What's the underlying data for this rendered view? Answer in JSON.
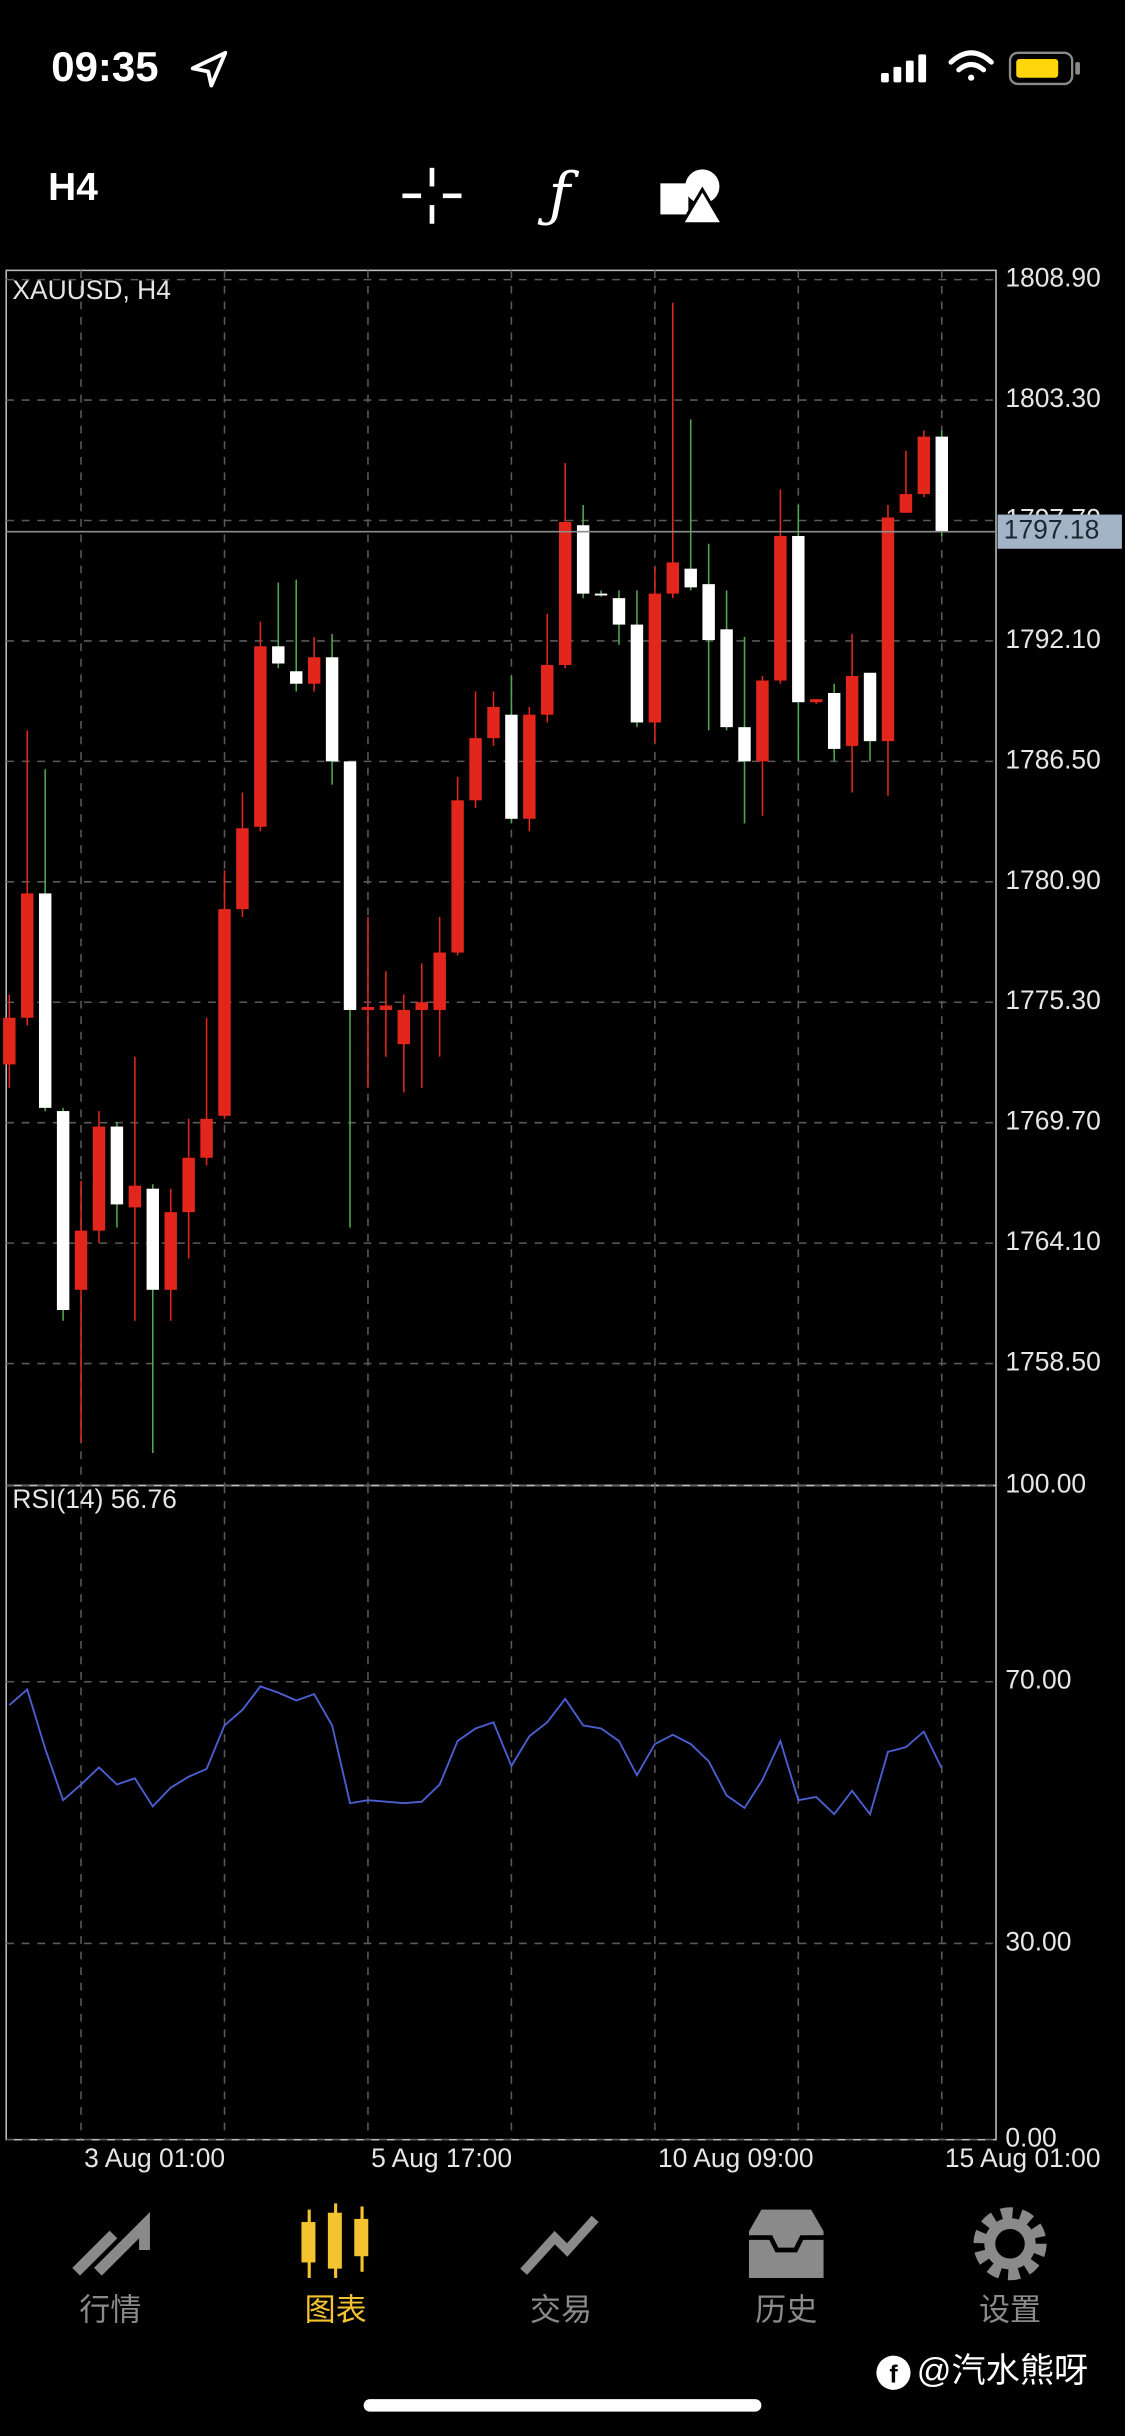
{
  "status_bar": {
    "time": "09:35"
  },
  "toolbar": {
    "timeframe": "H4"
  },
  "chart_data": [
    {
      "type": "candlestick",
      "title": "XAUUSD, H4",
      "categories": [
        null,
        null,
        null,
        null,
        "3 Aug 01:00",
        null,
        null,
        null,
        null,
        null,
        null,
        null,
        null,
        null,
        null,
        null,
        null,
        null,
        null,
        null,
        "5 Aug 17:00",
        null,
        null,
        null,
        null,
        null,
        null,
        null,
        null,
        null,
        null,
        null,
        null,
        null,
        null,
        null,
        "10 Aug 09:00",
        null,
        null,
        null,
        null,
        null,
        null,
        null,
        null,
        null,
        null,
        null,
        null,
        null,
        null,
        null,
        "15 Aug 01:00"
      ],
      "open": [
        1772.41,
        1774.58,
        1780.36,
        1770.24,
        1761.93,
        1764.68,
        1769.52,
        1765.76,
        1766.63,
        1761.93,
        1765.54,
        1768.07,
        1770.02,
        1779.63,
        1783.46,
        1791.85,
        1790.69,
        1790.11,
        1791.34,
        1786.5,
        1774.94,
        1774.94,
        1773.35,
        1774.94,
        1774.94,
        1777.61,
        1784.69,
        1787.58,
        1788.67,
        1783.83,
        1788.67,
        1790.98,
        1797.48,
        1794.3,
        1794.09,
        1792.86,
        1788.31,
        1794.3,
        1795.46,
        1794.74,
        1792.64,
        1788.09,
        1786.5,
        1790.26,
        1796.98,
        1789.25,
        1789.68,
        1787.22,
        1790.62,
        1787.44,
        1798.06,
        1798.93,
        1801.6
      ],
      "high": [
        1775.66,
        1787.94,
        1786.14,
        1770.39,
        1766.99,
        1770.24,
        1769.74,
        1772.77,
        1766.84,
        1766.63,
        1769.88,
        1774.58,
        1781.44,
        1785.05,
        1793.0,
        1794.81,
        1794.95,
        1792.28,
        1792.42,
        1786.5,
        1779.27,
        1776.74,
        1775.66,
        1777.11,
        1779.27,
        1785.78,
        1789.75,
        1789.75,
        1790.47,
        1789.03,
        1793.36,
        1800.37,
        1798.42,
        1794.45,
        1794.45,
        1794.45,
        1795.53,
        1807.82,
        1802.4,
        1796.62,
        1794.45,
        1792.28,
        1790.47,
        1799.14,
        1798.42,
        1789.39,
        1790.11,
        1792.42,
        1790.62,
        1798.42,
        1800.95,
        1801.89,
        1801.89
      ],
      "low": [
        1771.32,
        1774.22,
        1770.24,
        1760.49,
        1754.85,
        1764.1,
        1764.82,
        1760.49,
        1754.34,
        1760.49,
        1763.38,
        1767.71,
        1769.88,
        1779.27,
        1783.25,
        1790.83,
        1789.75,
        1789.75,
        1785.42,
        1764.82,
        1771.32,
        1772.77,
        1771.11,
        1771.32,
        1772.77,
        1777.47,
        1784.33,
        1787.22,
        1783.61,
        1783.25,
        1788.31,
        1790.83,
        1794.09,
        1794.16,
        1791.92,
        1788.09,
        1787.37,
        1794.09,
        1794.45,
        1787.94,
        1787.94,
        1783.61,
        1783.97,
        1790.11,
        1786.5,
        1789.17,
        1786.5,
        1785.05,
        1786.5,
        1784.91,
        1798.06,
        1798.78,
        1796.98
      ],
      "close": [
        1774.58,
        1780.36,
        1770.39,
        1760.99,
        1764.68,
        1769.52,
        1765.9,
        1766.77,
        1761.93,
        1765.54,
        1768.07,
        1769.88,
        1779.63,
        1783.39,
        1791.85,
        1791.05,
        1790.11,
        1791.34,
        1786.5,
        1774.94,
        1775.08,
        1775.15,
        1774.94,
        1775.3,
        1777.61,
        1784.69,
        1787.58,
        1789.03,
        1783.83,
        1788.67,
        1790.98,
        1797.63,
        1794.3,
        1794.28,
        1792.86,
        1788.31,
        1794.3,
        1795.75,
        1794.59,
        1792.14,
        1788.09,
        1786.5,
        1790.26,
        1796.98,
        1789.25,
        1789.39,
        1787.08,
        1790.47,
        1787.44,
        1797.84,
        1798.93,
        1801.6,
        1797.18
      ],
      "up_color": "#e3261c",
      "down_color": "#ffffff",
      "down_wick_color": "#4fa84f",
      "ylim": [
        1752.83,
        1809.33
      ],
      "yticks": [
        {
          "value": 1808.9,
          "label": "1808.90"
        },
        {
          "value": 1803.3,
          "label": "1803.30"
        },
        {
          "value": 1797.7,
          "label": "1797.70"
        },
        {
          "value": 1792.1,
          "label": "1792.10"
        },
        {
          "value": 1786.5,
          "label": "1786.50"
        },
        {
          "value": 1780.9,
          "label": "1780.90"
        },
        {
          "value": 1775.3,
          "label": "1775.30"
        },
        {
          "value": 1769.7,
          "label": "1769.70"
        },
        {
          "value": 1764.1,
          "label": "1764.10"
        },
        {
          "value": 1758.5,
          "label": "1758.50"
        }
      ],
      "grid": true
    },
    {
      "type": "line",
      "title": "RSI(14) 56.76",
      "values": [
        66.43,
        68.81,
        59.76,
        51.9,
        54.29,
        56.9,
        54.29,
        55.24,
        50.95,
        53.81,
        55.48,
        56.67,
        63.33,
        65.71,
        69.29,
        68.33,
        67.14,
        68.1,
        63.33,
        51.43,
        51.9,
        51.67,
        51.43,
        51.67,
        54.29,
        60.95,
        62.86,
        63.81,
        57.14,
        61.67,
        63.81,
        67.38,
        63.33,
        62.86,
        60.95,
        55.71,
        60.48,
        61.9,
        60.48,
        57.86,
        52.62,
        50.71,
        55.0,
        60.95,
        51.9,
        52.38,
        49.76,
        53.33,
        49.76,
        59.29,
        60.0,
        62.38,
        56.76
      ],
      "color": "#4b5fd0",
      "ylim": [
        0,
        100
      ],
      "yticks": [
        {
          "value": 100,
          "label": "100.00"
        },
        {
          "value": 70,
          "label": "70.00"
        },
        {
          "value": 30,
          "label": "30.00"
        },
        {
          "value": 0,
          "label": "0.00"
        }
      ],
      "grid": true
    }
  ],
  "tab_bar": {
    "items": [
      "行情",
      "图表",
      "交易",
      "历史",
      "设置"
    ],
    "selected": 1
  },
  "watermark": "@汽水熊呀"
}
